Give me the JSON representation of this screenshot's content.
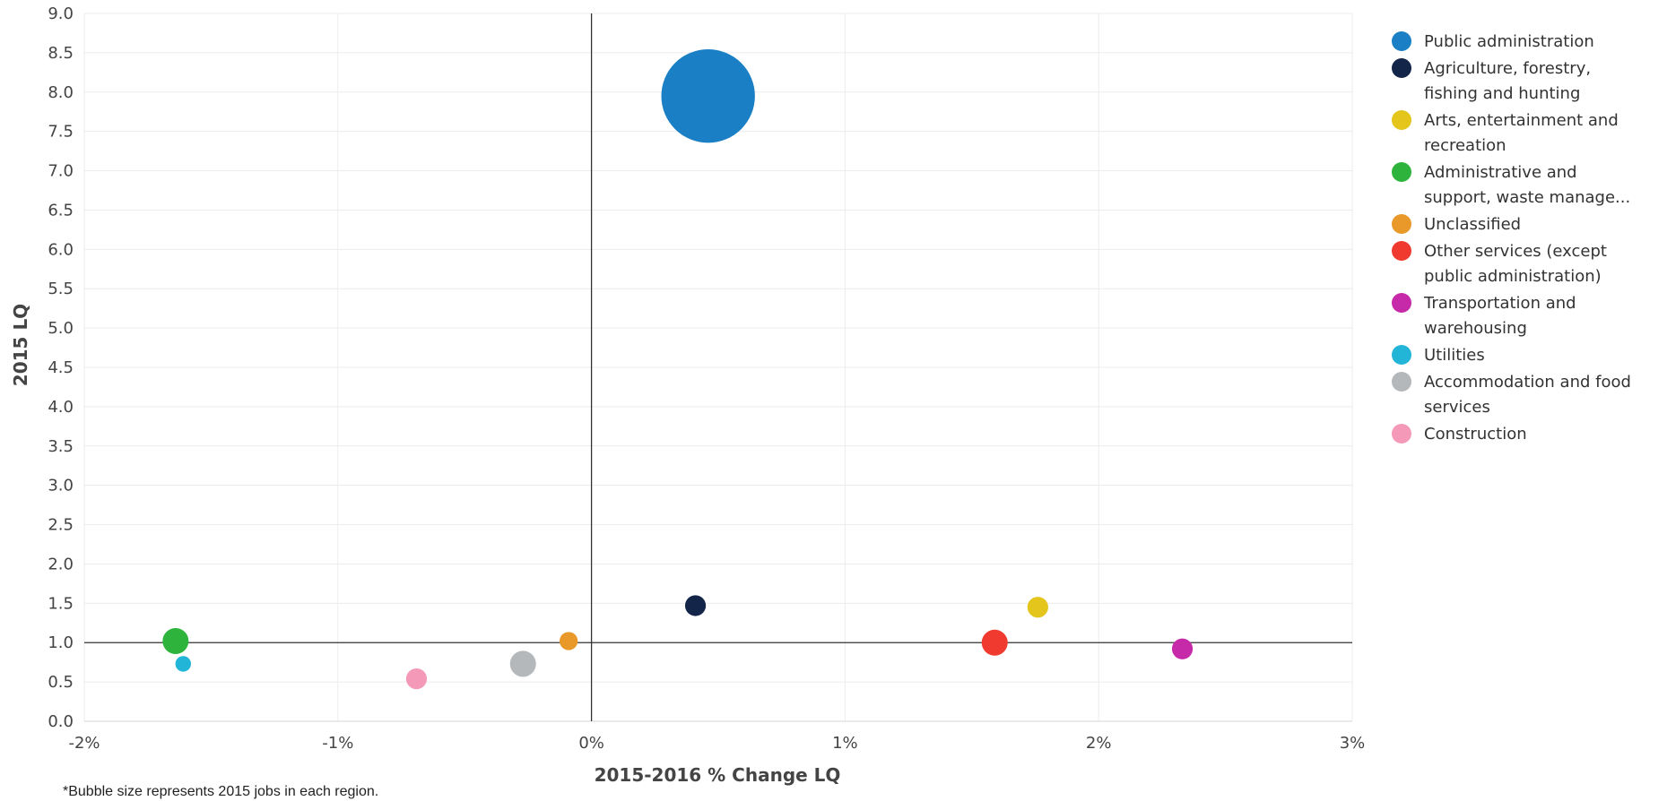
{
  "chart_data": {
    "type": "scatter",
    "title": "",
    "xlabel": "2015-2016 % Change LQ",
    "ylabel": "2015 LQ",
    "xlim": [
      -2,
      3
    ],
    "ylim": [
      0,
      9
    ],
    "x_ticks": [
      -2,
      -1,
      0,
      1,
      2,
      3
    ],
    "x_tick_labels": [
      "-2%",
      "-1%",
      "0%",
      "1%",
      "2%",
      "3%"
    ],
    "y_ticks": [
      0,
      0.5,
      1,
      1.5,
      2,
      2.5,
      3,
      3.5,
      4,
      4.5,
      5,
      5.5,
      6,
      6.5,
      7,
      7.5,
      8,
      8.5,
      9
    ],
    "y_tick_labels": [
      "0.0",
      "0.5",
      "1.0",
      "1.5",
      "2.0",
      "2.5",
      "3.0",
      "3.5",
      "4.0",
      "4.5",
      "5.0",
      "5.5",
      "6.0",
      "6.5",
      "7.0",
      "7.5",
      "8.0",
      "8.5",
      "9.0"
    ],
    "reference_lines": {
      "x": 0,
      "y": 1
    },
    "grid": true,
    "legend_position": "right",
    "footnote": "*Bubble size represents 2015 jobs in each region.",
    "series": [
      {
        "name": "Public administration",
        "name_lines": [
          "Public administration"
        ],
        "color": "#1a7fc5",
        "x": 0.46,
        "y": 7.95,
        "size": 36
      },
      {
        "name": "Agriculture, forestry, fishing and hunting",
        "name_lines": [
          "Agriculture, forestry,",
          "fishing and hunting"
        ],
        "color": "#14254a",
        "x": 0.41,
        "y": 1.47,
        "size": 8
      },
      {
        "name": "Arts, entertainment and recreation",
        "name_lines": [
          "Arts, entertainment and",
          "recreation"
        ],
        "color": "#e3c51c",
        "x": 1.76,
        "y": 1.45,
        "size": 8
      },
      {
        "name": "Administrative and support, waste manage...",
        "name_lines": [
          "Administrative and",
          "support, waste manage..."
        ],
        "color": "#2eb43c",
        "x": -1.64,
        "y": 1.02,
        "size": 10
      },
      {
        "name": "Unclassified",
        "name_lines": [
          "Unclassified"
        ],
        "color": "#e8992a",
        "x": -0.09,
        "y": 1.02,
        "size": 7
      },
      {
        "name": "Other services (except public administration)",
        "name_lines": [
          "Other services (except",
          "public administration)"
        ],
        "color": "#f03a30",
        "x": 1.59,
        "y": 1.0,
        "size": 10
      },
      {
        "name": "Transportation and warehousing",
        "name_lines": [
          "Transportation and",
          "warehousing"
        ],
        "color": "#c72aa8",
        "x": 2.33,
        "y": 0.92,
        "size": 8
      },
      {
        "name": "Utilities",
        "name_lines": [
          "Utilities"
        ],
        "color": "#22b5d8",
        "x": -1.61,
        "y": 0.73,
        "size": 6
      },
      {
        "name": "Accommodation and food services",
        "name_lines": [
          "Accommodation and food",
          "services"
        ],
        "color": "#b5b8bb",
        "x": -0.27,
        "y": 0.73,
        "size": 10
      },
      {
        "name": "Construction",
        "name_lines": [
          "Construction"
        ],
        "color": "#f599b8",
        "x": -0.69,
        "y": 0.54,
        "size": 8
      }
    ]
  }
}
